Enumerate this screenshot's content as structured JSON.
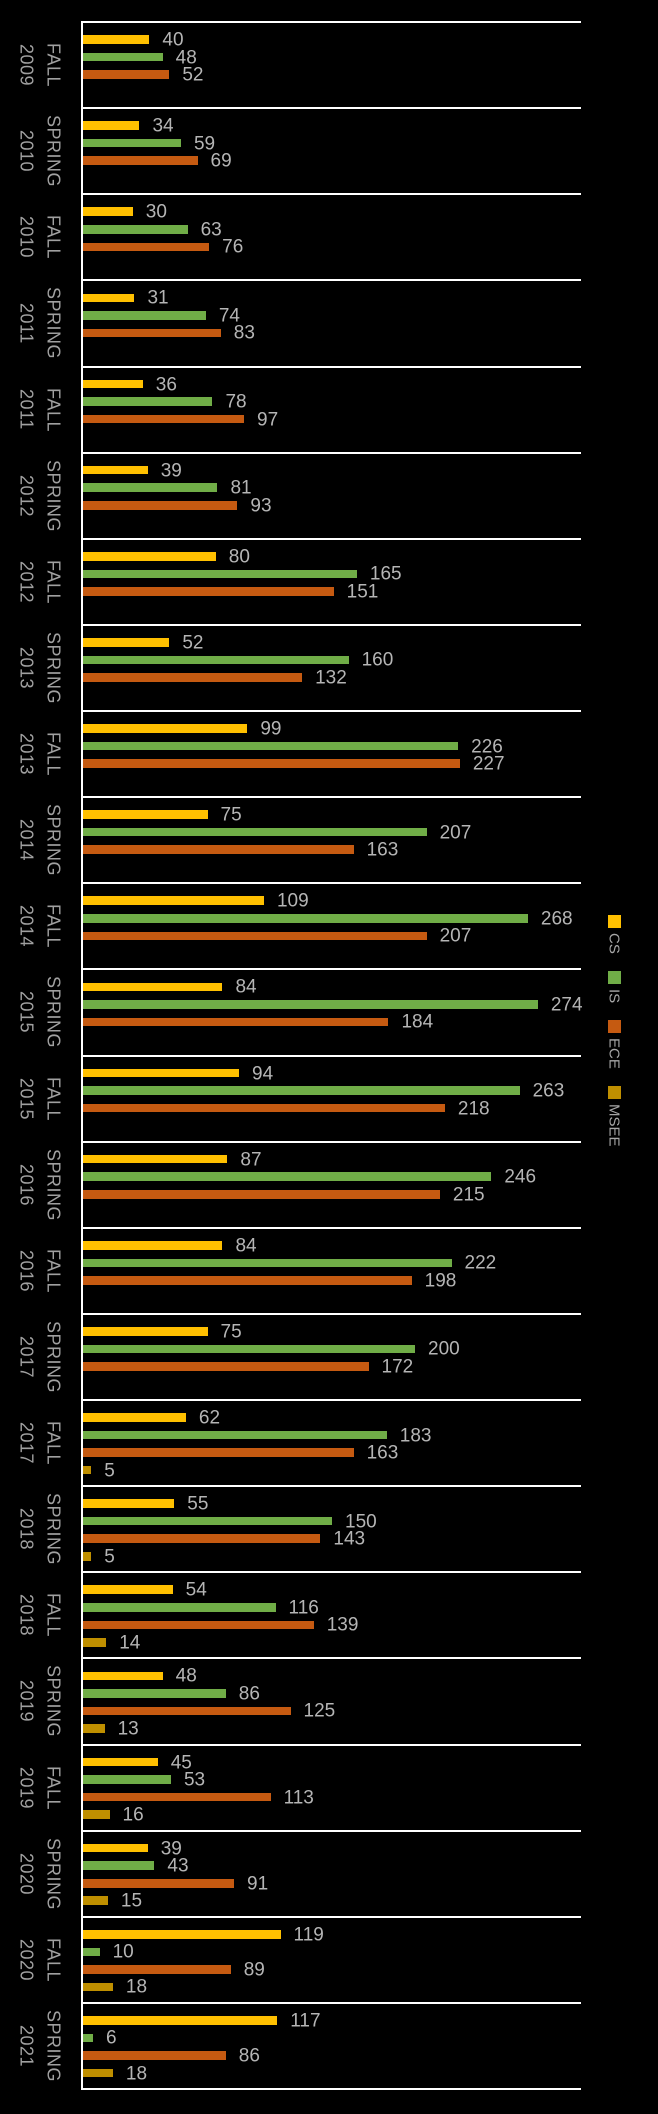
{
  "chart_data": {
    "type": "bar",
    "orientation": "horizontal",
    "title": "",
    "xlabel": "",
    "ylabel": "",
    "xlim": [
      0,
      300
    ],
    "grid": "category-separators",
    "legend_position": "right",
    "data_labels": true,
    "background_color": "#000000",
    "line_color": "#ffffff",
    "data_label_color": "#b5b5b5",
    "category_label_color": "#a0a0a0",
    "legend_label_color": "#a6a6a6",
    "categories": [
      "FALL 2009",
      "SPRING 2010",
      "FALL 2010",
      "SPRING 2011",
      "FALL 2011",
      "SPRING 2012",
      "FALL 2012",
      "SPRING 2013",
      "FALL 2013",
      "SPRING 2014",
      "FALL 2014",
      "SPRING 2015",
      "FALL 2015",
      "SPRING 2016",
      "FALL 2016",
      "SPRING 2017",
      "FALL 2017",
      "SPRING 2018",
      "FALL 2018",
      "SPRING 2019",
      "FALL 2019",
      "SPRING 2020",
      "FALL 2020",
      "SPRING 2021"
    ],
    "series": [
      {
        "name": "CS",
        "color": "#FFC000",
        "values": [
          40,
          34,
          30,
          31,
          36,
          39,
          80,
          52,
          99,
          75,
          109,
          84,
          94,
          87,
          84,
          75,
          62,
          55,
          54,
          48,
          45,
          39,
          119,
          117
        ]
      },
      {
        "name": "IS",
        "color": "#70AD47",
        "values": [
          48,
          59,
          63,
          74,
          78,
          81,
          165,
          160,
          226,
          207,
          268,
          274,
          263,
          246,
          222,
          200,
          183,
          150,
          116,
          86,
          53,
          43,
          10,
          6
        ]
      },
      {
        "name": "ECE",
        "color": "#C55A11",
        "values": [
          52,
          69,
          76,
          83,
          97,
          93,
          151,
          132,
          227,
          163,
          207,
          184,
          218,
          215,
          198,
          172,
          163,
          143,
          139,
          125,
          113,
          91,
          89,
          86
        ]
      },
      {
        "name": "MSEE",
        "color": "#BF8F00",
        "values": [
          0,
          0,
          0,
          0,
          0,
          0,
          0,
          0,
          0,
          0,
          0,
          0,
          0,
          0,
          0,
          0,
          5,
          5,
          14,
          13,
          16,
          15,
          18,
          18
        ]
      }
    ]
  }
}
